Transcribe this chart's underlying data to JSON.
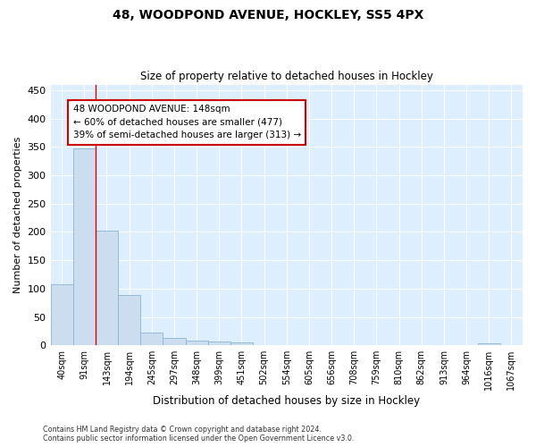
{
  "title_line1": "48, WOODPOND AVENUE, HOCKLEY, SS5 4PX",
  "title_line2": "Size of property relative to detached houses in Hockley",
  "xlabel": "Distribution of detached houses by size in Hockley",
  "ylabel": "Number of detached properties",
  "categories": [
    "40sqm",
    "91sqm",
    "143sqm",
    "194sqm",
    "245sqm",
    "297sqm",
    "348sqm",
    "399sqm",
    "451sqm",
    "502sqm",
    "554sqm",
    "605sqm",
    "656sqm",
    "708sqm",
    "759sqm",
    "810sqm",
    "862sqm",
    "913sqm",
    "964sqm",
    "1016sqm",
    "1067sqm"
  ],
  "values": [
    107,
    348,
    202,
    88,
    23,
    13,
    8,
    7,
    5,
    0,
    0,
    0,
    0,
    0,
    0,
    0,
    0,
    0,
    0,
    4,
    0
  ],
  "bar_color": "#ccddef",
  "bar_edge_color": "#8ab4d4",
  "background_color": "#ddeeff",
  "grid_color": "#ffffff",
  "red_line_index": 2,
  "annotation_line1": "48 WOODPOND AVENUE: 148sqm",
  "annotation_line2": "← 60% of detached houses are smaller (477)",
  "annotation_line3": "39% of semi-detached houses are larger (313) →",
  "annotation_box_color": "#ffffff",
  "annotation_box_edge": "#cc0000",
  "ylim": [
    0,
    460
  ],
  "yticks": [
    0,
    50,
    100,
    150,
    200,
    250,
    300,
    350,
    400,
    450
  ],
  "fig_bg": "#ffffff",
  "footer_line1": "Contains HM Land Registry data © Crown copyright and database right 2024.",
  "footer_line2": "Contains public sector information licensed under the Open Government Licence v3.0."
}
